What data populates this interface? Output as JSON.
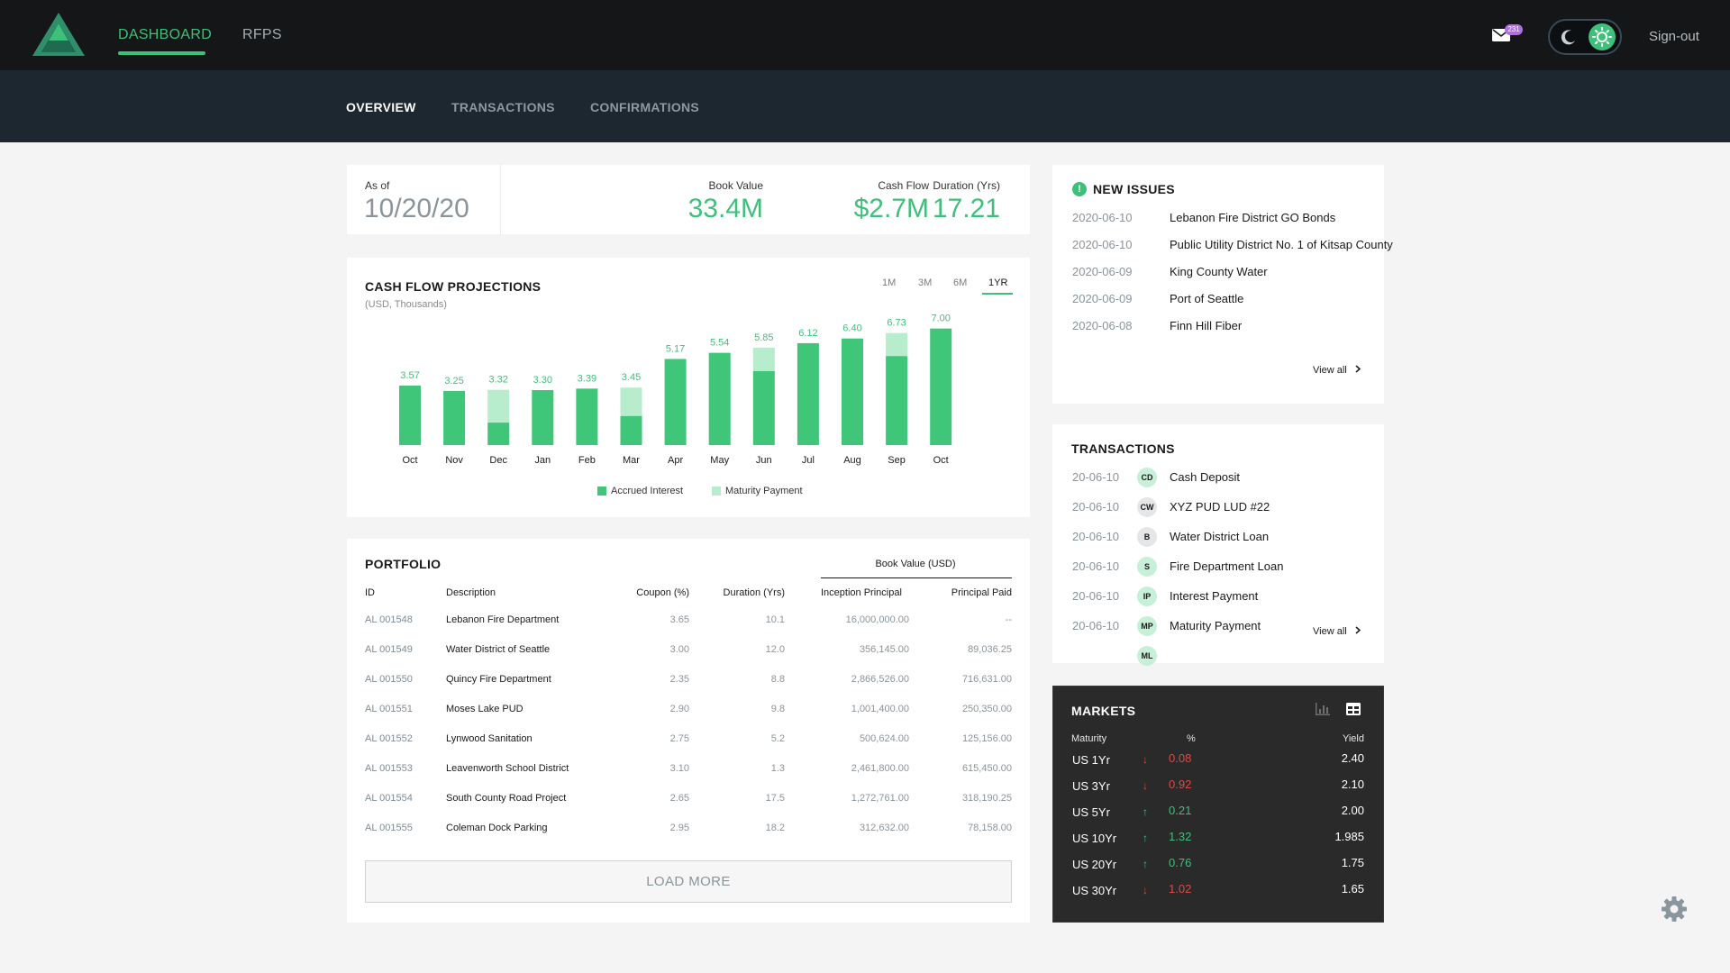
{
  "nav": {
    "dashboard": "DASHBOARD",
    "rfps": "RFPS",
    "mail_count": "231",
    "signout": "Sign-out"
  },
  "subnav": {
    "overview": "OVERVIEW",
    "transactions": "TRANSACTIONS",
    "confirmations": "CONFIRMATIONS"
  },
  "summary": {
    "as_of_label": "As of",
    "as_of_value": "10/20/20",
    "book_value_label": "Book Value",
    "book_value": "33.4M",
    "cash_flow_label": "Cash Flow",
    "cash_flow": "$2.7M",
    "duration_label": "Duration (Yrs)",
    "duration": "17.21"
  },
  "cashflow": {
    "title": "CASH FLOW PROJECTIONS",
    "subtitle": "(USD, Thousands)",
    "ranges": [
      "1M",
      "3M",
      "6M",
      "1YR"
    ],
    "active_range": "1YR"
  },
  "chart_data": {
    "type": "bar",
    "stacked": true,
    "categories": [
      "Oct",
      "Nov",
      "Dec",
      "Jan",
      "Feb",
      "Mar",
      "Apr",
      "May",
      "Jun",
      "Jul",
      "Aug",
      "Sep",
      "Oct"
    ],
    "totals": [
      3.57,
      3.25,
      3.32,
      3.3,
      3.39,
      3.45,
      5.17,
      5.54,
      5.85,
      6.12,
      6.4,
      6.73,
      7.0
    ],
    "total_labels": [
      "3.57",
      "3.25",
      "3.32",
      "3.30",
      "3.39",
      "3.45",
      "5.17",
      "5.54",
      "5.85",
      "6.12",
      "6.40",
      "6.73",
      "7.00"
    ],
    "series": [
      {
        "name": "Accrued Interest",
        "color": "#3fc679",
        "values": [
          3.57,
          3.25,
          1.35,
          3.3,
          3.39,
          1.75,
          5.17,
          5.54,
          4.45,
          6.12,
          6.4,
          5.35,
          7.0
        ]
      },
      {
        "name": "Maturity Payment",
        "color": "#b7eccd",
        "values": [
          0,
          0,
          1.97,
          0,
          0,
          1.7,
          0,
          0,
          1.4,
          0,
          0,
          1.38,
          0
        ]
      }
    ],
    "ylim": [
      0,
      8
    ],
    "grid": false,
    "legend": "bottom-center"
  },
  "portfolio": {
    "title": "PORTFOLIO",
    "group_header": "Book Value (USD)",
    "columns": [
      "ID",
      "Description",
      "Coupon (%)",
      "Duration (Yrs)",
      "Inception Principal",
      "Principal Paid"
    ],
    "rows": [
      [
        "AL 001548",
        "Lebanon Fire Department",
        "3.65",
        "10.1",
        "16,000,000.00",
        "--"
      ],
      [
        "AL 001549",
        "Water District of Seattle",
        "3.00",
        "12.0",
        "356,145.00",
        "89,036.25"
      ],
      [
        "AL 001550",
        "Quincy Fire Department",
        "2.35",
        "8.8",
        "2,866,526.00",
        "716,631.00"
      ],
      [
        "AL 001551",
        "Moses Lake PUD",
        "2.90",
        "9.8",
        "1,001,400.00",
        "250,350.00"
      ],
      [
        "AL 001552",
        "Lynwood Sanitation",
        "2.75",
        "5.2",
        "500,624.00",
        "125,156.00"
      ],
      [
        "AL 001553",
        "Leavenworth School District",
        "3.10",
        "1.3",
        "2,461,800.00",
        "615,450.00"
      ],
      [
        "AL 001554",
        "South County Road Project",
        "2.65",
        "17.5",
        "1,272,761.00",
        "318,190.25"
      ],
      [
        "AL 001555",
        "Coleman Dock Parking",
        "2.95",
        "18.2",
        "312,632.00",
        "78,158.00"
      ]
    ],
    "load_more": "LOAD MORE"
  },
  "new_issues": {
    "title": "NEW ISSUES",
    "icon": "!",
    "items": [
      {
        "date": "2020-06-10",
        "name": "Lebanon Fire District GO Bonds"
      },
      {
        "date": "2020-06-10",
        "name": "Public Utility District No. 1 of Kitsap County"
      },
      {
        "date": "2020-06-09",
        "name": "King County Water"
      },
      {
        "date": "2020-06-09",
        "name": "Port of Seattle"
      },
      {
        "date": "2020-06-08",
        "name": "Finn Hill Fiber"
      }
    ],
    "view_all": "View all"
  },
  "transactions": {
    "title": "TRANSACTIONS",
    "items": [
      {
        "date": "20-06-10",
        "badge": "CD",
        "badge_color": "#c8efd8",
        "name": "Cash Deposit"
      },
      {
        "date": "20-06-10",
        "badge": "CW",
        "badge_color": "#e4e6e8",
        "name": "XYZ PUD LUD #22"
      },
      {
        "date": "20-06-10",
        "badge": "B",
        "badge_color": "#e4e6e8",
        "name": "Water District Loan"
      },
      {
        "date": "20-06-10",
        "badge": "S",
        "badge_color": "#c8efd8",
        "name": "Fire Department Loan"
      },
      {
        "date": "20-06-10",
        "badge": "IP",
        "badge_color": "#c8efd8",
        "name": "Interest Payment"
      },
      {
        "date": "20-06-10",
        "badge": "MP",
        "badge_color": "#c8efd8",
        "name": "Maturity Payment"
      },
      {
        "date": "",
        "badge": "ML",
        "badge_color": "#c8efd8",
        "name": ""
      }
    ],
    "view_all": "View all"
  },
  "markets": {
    "title": "MARKETS",
    "head_maturity": "Maturity",
    "head_pct": "%",
    "head_yield": "Yield",
    "rows": [
      {
        "name": "US 1Yr",
        "dir": "down",
        "arrow": "↓",
        "pct": "0.08",
        "yield": "2.40"
      },
      {
        "name": "US 3Yr",
        "dir": "down",
        "arrow": "↓",
        "pct": "0.92",
        "yield": "2.10"
      },
      {
        "name": "US 5Yr",
        "dir": "up",
        "arrow": "↑",
        "pct": "0.21",
        "yield": "2.00"
      },
      {
        "name": "US 10Yr",
        "dir": "up",
        "arrow": "↑",
        "pct": "1.32",
        "yield": "1.985"
      },
      {
        "name": "US 20Yr",
        "dir": "up",
        "arrow": "↑",
        "pct": "0.76",
        "yield": "1.75"
      },
      {
        "name": "US 30Yr",
        "dir": "down",
        "arrow": "↓",
        "pct": "1.02",
        "yield": "1.65"
      }
    ]
  },
  "colors": {
    "accent": "#3ec07b",
    "accent_light": "#b7eccd",
    "topbar": "#151617",
    "subnav": "#1c2730",
    "down": "#e04848"
  },
  "icons": [
    "logo-icon",
    "mail-icon",
    "moon-icon",
    "sun-icon",
    "alert-icon",
    "chevron-right-icon",
    "bar-chart-icon",
    "table-icon",
    "gear-icon"
  ]
}
